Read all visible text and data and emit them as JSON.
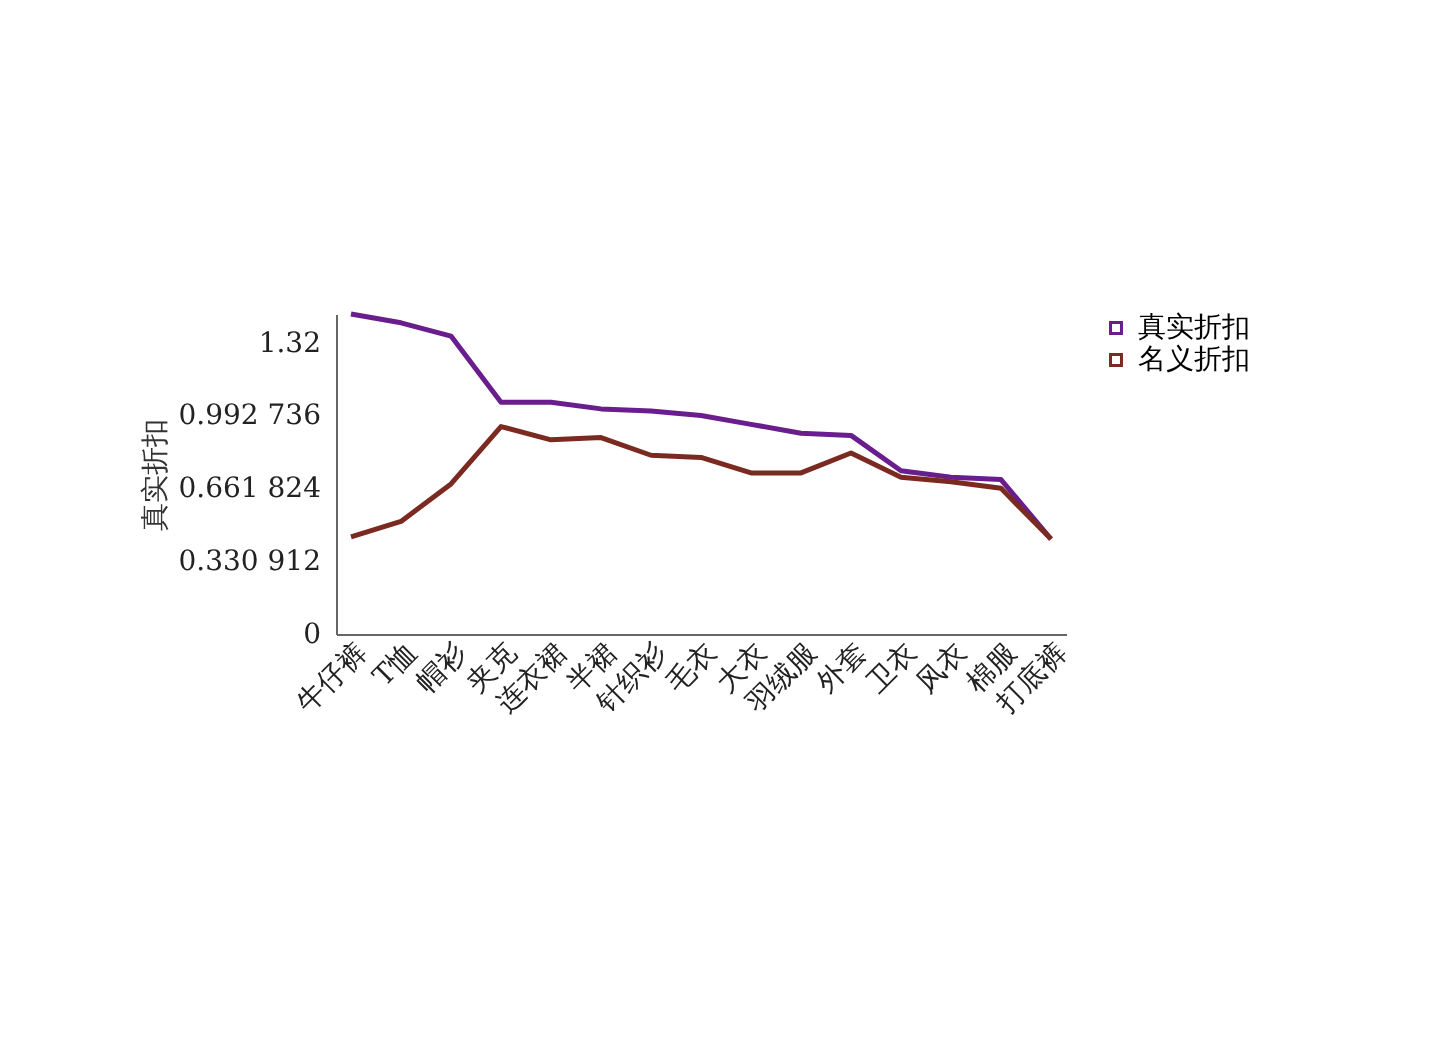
{
  "chart_data": {
    "type": "line",
    "ylabel": "真实折扣",
    "categories": [
      "牛仔裤",
      "T恤",
      "帽衫",
      "夹克",
      "连衣裙",
      "半裙",
      "针织衫",
      "毛衣",
      "大衣",
      "羽绒服",
      "外套",
      "卫衣",
      "风衣",
      "棉服",
      "打底裤"
    ],
    "series": [
      {
        "name": "真实折扣",
        "color": "#6a1d8c",
        "values": [
          1.45,
          1.41,
          1.35,
          1.05,
          1.05,
          1.02,
          1.01,
          0.99,
          0.95,
          0.91,
          0.9,
          0.74,
          0.71,
          0.7,
          0.43
        ]
      },
      {
        "name": "名义折扣",
        "color": "#7a2a20",
        "values": [
          0.44,
          0.51,
          0.68,
          0.94,
          0.88,
          0.89,
          0.81,
          0.8,
          0.73,
          0.73,
          0.82,
          0.71,
          0.69,
          0.66,
          0.43
        ]
      }
    ],
    "ylim": [
      0,
      1.45
    ],
    "yticks": [
      0,
      {
        "value": 0.330912,
        "label": "0.330 912"
      },
      {
        "value": 0.661824,
        "label": "0.661 824"
      },
      {
        "value": 0.992736,
        "label": "0.992 736"
      },
      1.32
    ],
    "grid": false,
    "legend": "top right",
    "marker": "none",
    "line_style": "solid"
  }
}
